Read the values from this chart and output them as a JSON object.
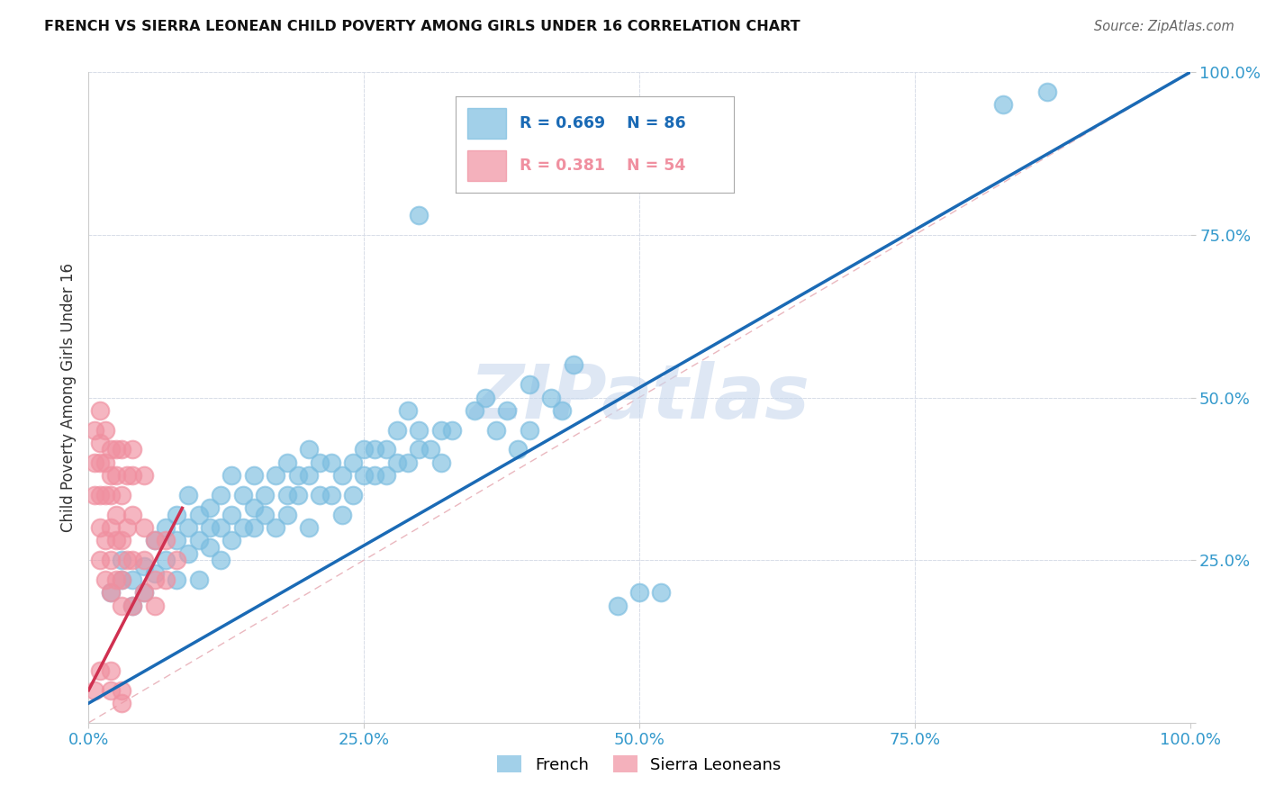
{
  "title": "FRENCH VS SIERRA LEONEAN CHILD POVERTY AMONG GIRLS UNDER 16 CORRELATION CHART",
  "source": "Source: ZipAtlas.com",
  "ylabel": "Child Poverty Among Girls Under 16",
  "xlim": [
    0,
    1
  ],
  "ylim": [
    0,
    1
  ],
  "xticks": [
    0,
    0.25,
    0.5,
    0.75,
    1.0
  ],
  "yticks": [
    0,
    0.25,
    0.5,
    0.75,
    1.0
  ],
  "xticklabels": [
    "0.0%",
    "25.0%",
    "50.0%",
    "75.0%",
    "100.0%"
  ],
  "yticklabels": [
    "",
    "25.0%",
    "50.0%",
    "75.0%",
    "100.0%"
  ],
  "french_R": 0.669,
  "french_N": 86,
  "sierra_R": 0.381,
  "sierra_N": 54,
  "french_color": "#7bbde0",
  "sierra_color": "#f090a0",
  "french_line_color": "#1a6ab5",
  "sierra_line_color": "#d03050",
  "ref_line_color": "#e8b0b8",
  "tick_color": "#3399cc",
  "watermark": "ZIPatlas",
  "watermark_color": "#c8d8ee",
  "legend_label_french": "French",
  "legend_label_sierra": "Sierra Leoneans",
  "french_line_x0": 0.0,
  "french_line_y0": 0.03,
  "french_line_x1": 1.0,
  "french_line_y1": 1.0,
  "sierra_line_x0": 0.0,
  "sierra_line_y0": 0.05,
  "sierra_line_x1": 0.085,
  "sierra_line_y1": 0.33,
  "french_scatter": [
    [
      0.02,
      0.2
    ],
    [
      0.03,
      0.22
    ],
    [
      0.03,
      0.25
    ],
    [
      0.04,
      0.18
    ],
    [
      0.04,
      0.22
    ],
    [
      0.05,
      0.2
    ],
    [
      0.05,
      0.24
    ],
    [
      0.06,
      0.23
    ],
    [
      0.06,
      0.28
    ],
    [
      0.07,
      0.25
    ],
    [
      0.07,
      0.3
    ],
    [
      0.08,
      0.22
    ],
    [
      0.08,
      0.28
    ],
    [
      0.08,
      0.32
    ],
    [
      0.09,
      0.26
    ],
    [
      0.09,
      0.3
    ],
    [
      0.09,
      0.35
    ],
    [
      0.1,
      0.22
    ],
    [
      0.1,
      0.28
    ],
    [
      0.1,
      0.32
    ],
    [
      0.11,
      0.27
    ],
    [
      0.11,
      0.3
    ],
    [
      0.11,
      0.33
    ],
    [
      0.12,
      0.25
    ],
    [
      0.12,
      0.3
    ],
    [
      0.12,
      0.35
    ],
    [
      0.13,
      0.28
    ],
    [
      0.13,
      0.32
    ],
    [
      0.13,
      0.38
    ],
    [
      0.14,
      0.3
    ],
    [
      0.14,
      0.35
    ],
    [
      0.15,
      0.3
    ],
    [
      0.15,
      0.38
    ],
    [
      0.15,
      0.33
    ],
    [
      0.16,
      0.32
    ],
    [
      0.16,
      0.35
    ],
    [
      0.17,
      0.3
    ],
    [
      0.17,
      0.38
    ],
    [
      0.18,
      0.32
    ],
    [
      0.18,
      0.35
    ],
    [
      0.18,
      0.4
    ],
    [
      0.19,
      0.35
    ],
    [
      0.19,
      0.38
    ],
    [
      0.2,
      0.3
    ],
    [
      0.2,
      0.38
    ],
    [
      0.2,
      0.42
    ],
    [
      0.21,
      0.35
    ],
    [
      0.21,
      0.4
    ],
    [
      0.22,
      0.35
    ],
    [
      0.22,
      0.4
    ],
    [
      0.23,
      0.32
    ],
    [
      0.23,
      0.38
    ],
    [
      0.24,
      0.35
    ],
    [
      0.24,
      0.4
    ],
    [
      0.25,
      0.38
    ],
    [
      0.25,
      0.42
    ],
    [
      0.26,
      0.38
    ],
    [
      0.26,
      0.42
    ],
    [
      0.27,
      0.38
    ],
    [
      0.27,
      0.42
    ],
    [
      0.28,
      0.4
    ],
    [
      0.28,
      0.45
    ],
    [
      0.29,
      0.4
    ],
    [
      0.29,
      0.48
    ],
    [
      0.3,
      0.42
    ],
    [
      0.3,
      0.45
    ],
    [
      0.31,
      0.42
    ],
    [
      0.32,
      0.4
    ],
    [
      0.32,
      0.45
    ],
    [
      0.33,
      0.45
    ],
    [
      0.35,
      0.48
    ],
    [
      0.36,
      0.5
    ],
    [
      0.37,
      0.45
    ],
    [
      0.38,
      0.48
    ],
    [
      0.39,
      0.42
    ],
    [
      0.4,
      0.52
    ],
    [
      0.4,
      0.45
    ],
    [
      0.42,
      0.5
    ],
    [
      0.43,
      0.48
    ],
    [
      0.44,
      0.55
    ],
    [
      0.3,
      0.78
    ],
    [
      0.48,
      0.18
    ],
    [
      0.5,
      0.2
    ],
    [
      0.52,
      0.2
    ],
    [
      0.83,
      0.95
    ],
    [
      0.87,
      0.97
    ]
  ],
  "sierra_scatter": [
    [
      0.005,
      0.35
    ],
    [
      0.005,
      0.4
    ],
    [
      0.005,
      0.45
    ],
    [
      0.01,
      0.3
    ],
    [
      0.01,
      0.35
    ],
    [
      0.01,
      0.4
    ],
    [
      0.01,
      0.43
    ],
    [
      0.01,
      0.48
    ],
    [
      0.01,
      0.25
    ],
    [
      0.015,
      0.35
    ],
    [
      0.015,
      0.4
    ],
    [
      0.015,
      0.45
    ],
    [
      0.015,
      0.28
    ],
    [
      0.015,
      0.22
    ],
    [
      0.02,
      0.3
    ],
    [
      0.02,
      0.35
    ],
    [
      0.02,
      0.38
    ],
    [
      0.02,
      0.42
    ],
    [
      0.02,
      0.25
    ],
    [
      0.02,
      0.2
    ],
    [
      0.025,
      0.32
    ],
    [
      0.025,
      0.38
    ],
    [
      0.025,
      0.42
    ],
    [
      0.025,
      0.28
    ],
    [
      0.025,
      0.22
    ],
    [
      0.03,
      0.35
    ],
    [
      0.03,
      0.28
    ],
    [
      0.03,
      0.22
    ],
    [
      0.03,
      0.18
    ],
    [
      0.03,
      0.42
    ],
    [
      0.035,
      0.3
    ],
    [
      0.035,
      0.25
    ],
    [
      0.035,
      0.38
    ],
    [
      0.04,
      0.32
    ],
    [
      0.04,
      0.25
    ],
    [
      0.04,
      0.18
    ],
    [
      0.04,
      0.38
    ],
    [
      0.04,
      0.42
    ],
    [
      0.05,
      0.3
    ],
    [
      0.05,
      0.25
    ],
    [
      0.05,
      0.2
    ],
    [
      0.05,
      0.38
    ],
    [
      0.06,
      0.28
    ],
    [
      0.06,
      0.22
    ],
    [
      0.06,
      0.18
    ],
    [
      0.07,
      0.28
    ],
    [
      0.07,
      0.22
    ],
    [
      0.08,
      0.25
    ],
    [
      0.02,
      0.08
    ],
    [
      0.02,
      0.05
    ],
    [
      0.03,
      0.05
    ],
    [
      0.03,
      0.03
    ],
    [
      0.005,
      0.05
    ],
    [
      0.01,
      0.08
    ]
  ]
}
